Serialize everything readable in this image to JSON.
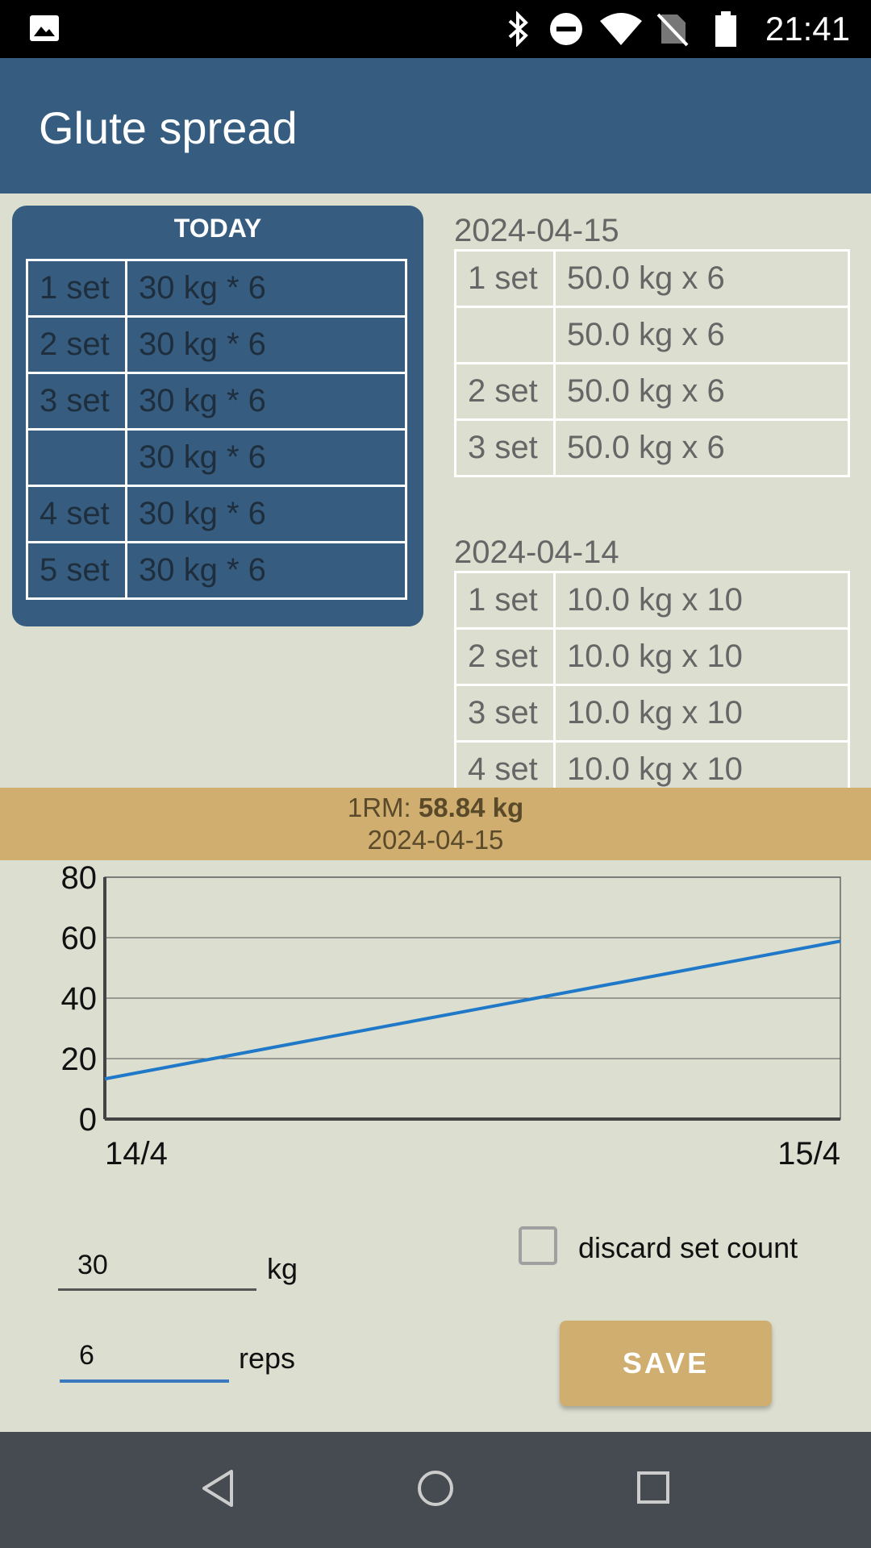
{
  "status_bar": {
    "time": "21:41"
  },
  "app_bar": {
    "title": "Glute spread"
  },
  "today": {
    "header": "TODAY",
    "rows": [
      {
        "set": "1 set",
        "value": "30 kg * 6"
      },
      {
        "set": "2 set",
        "value": "30 kg * 6"
      },
      {
        "set": "3 set",
        "value": "30 kg * 6"
      },
      {
        "set": "",
        "value": "30 kg * 6"
      },
      {
        "set": "4 set",
        "value": "30 kg * 6"
      },
      {
        "set": "5 set",
        "value": "30 kg * 6"
      }
    ]
  },
  "history": [
    {
      "date": "2024-04-15",
      "rows": [
        {
          "set": "1 set",
          "value": "50.0 kg x 6"
        },
        {
          "set": "",
          "value": "50.0 kg x 6"
        },
        {
          "set": "2 set",
          "value": "50.0 kg x 6"
        },
        {
          "set": "3 set",
          "value": "50.0 kg x 6"
        }
      ]
    },
    {
      "date": "2024-04-14",
      "rows": [
        {
          "set": "1 set",
          "value": "10.0 kg x 10"
        },
        {
          "set": "2 set",
          "value": "10.0 kg x 10"
        },
        {
          "set": "3 set",
          "value": "10.0 kg x 10"
        },
        {
          "set": "4 set",
          "value": "10.0 kg x 10"
        }
      ]
    }
  ],
  "one_rm": {
    "label": "1RM:",
    "value": "58.84 kg",
    "date": "2024-04-15"
  },
  "chart_data": {
    "type": "line",
    "x": [
      "14/4",
      "15/4"
    ],
    "series": [
      {
        "values": [
          13.3,
          58.84
        ]
      }
    ],
    "ylim": [
      0,
      80
    ],
    "yticks": [
      "0",
      "20",
      "40",
      "60",
      "80"
    ],
    "grid": true,
    "line_color": "#1f78c8"
  },
  "form": {
    "weight_value": "30",
    "weight_unit": "kg",
    "reps_value": "6",
    "reps_unit": "reps",
    "discard_label": "discard set count",
    "discard_checked": false,
    "save_label": "SAVE"
  },
  "colors": {
    "primary": "#365d80",
    "accent": "#cfae70",
    "background": "#dcdfd0"
  }
}
